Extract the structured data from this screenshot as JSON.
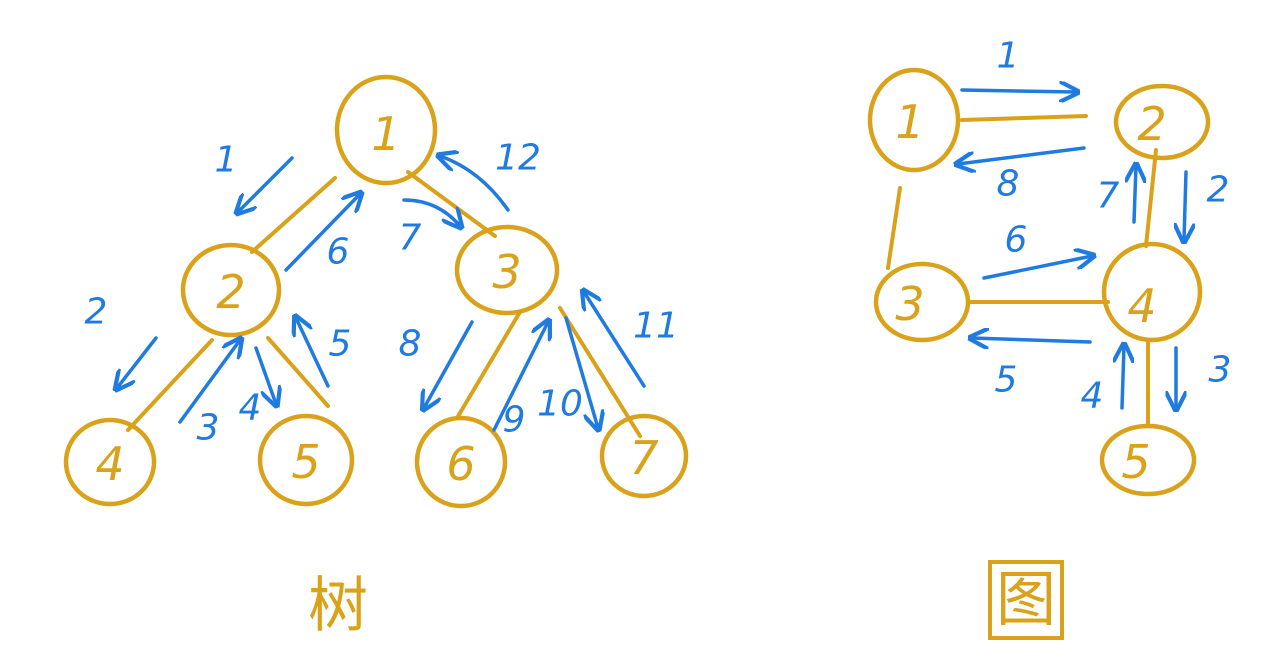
{
  "colors": {
    "node": "#D9A21A",
    "arrow": "#1F7BE0"
  },
  "tree": {
    "caption": "树",
    "nodes": [
      "1",
      "2",
      "3",
      "4",
      "5",
      "6",
      "7"
    ],
    "steps": [
      "1",
      "2",
      "3",
      "4",
      "5",
      "6",
      "7",
      "8",
      "9",
      "10",
      "11",
      "12"
    ]
  },
  "graph": {
    "caption": "图",
    "nodes": [
      "1",
      "2",
      "3",
      "4",
      "5"
    ],
    "steps": [
      "1",
      "2",
      "3",
      "4",
      "5",
      "6",
      "7",
      "8"
    ]
  }
}
